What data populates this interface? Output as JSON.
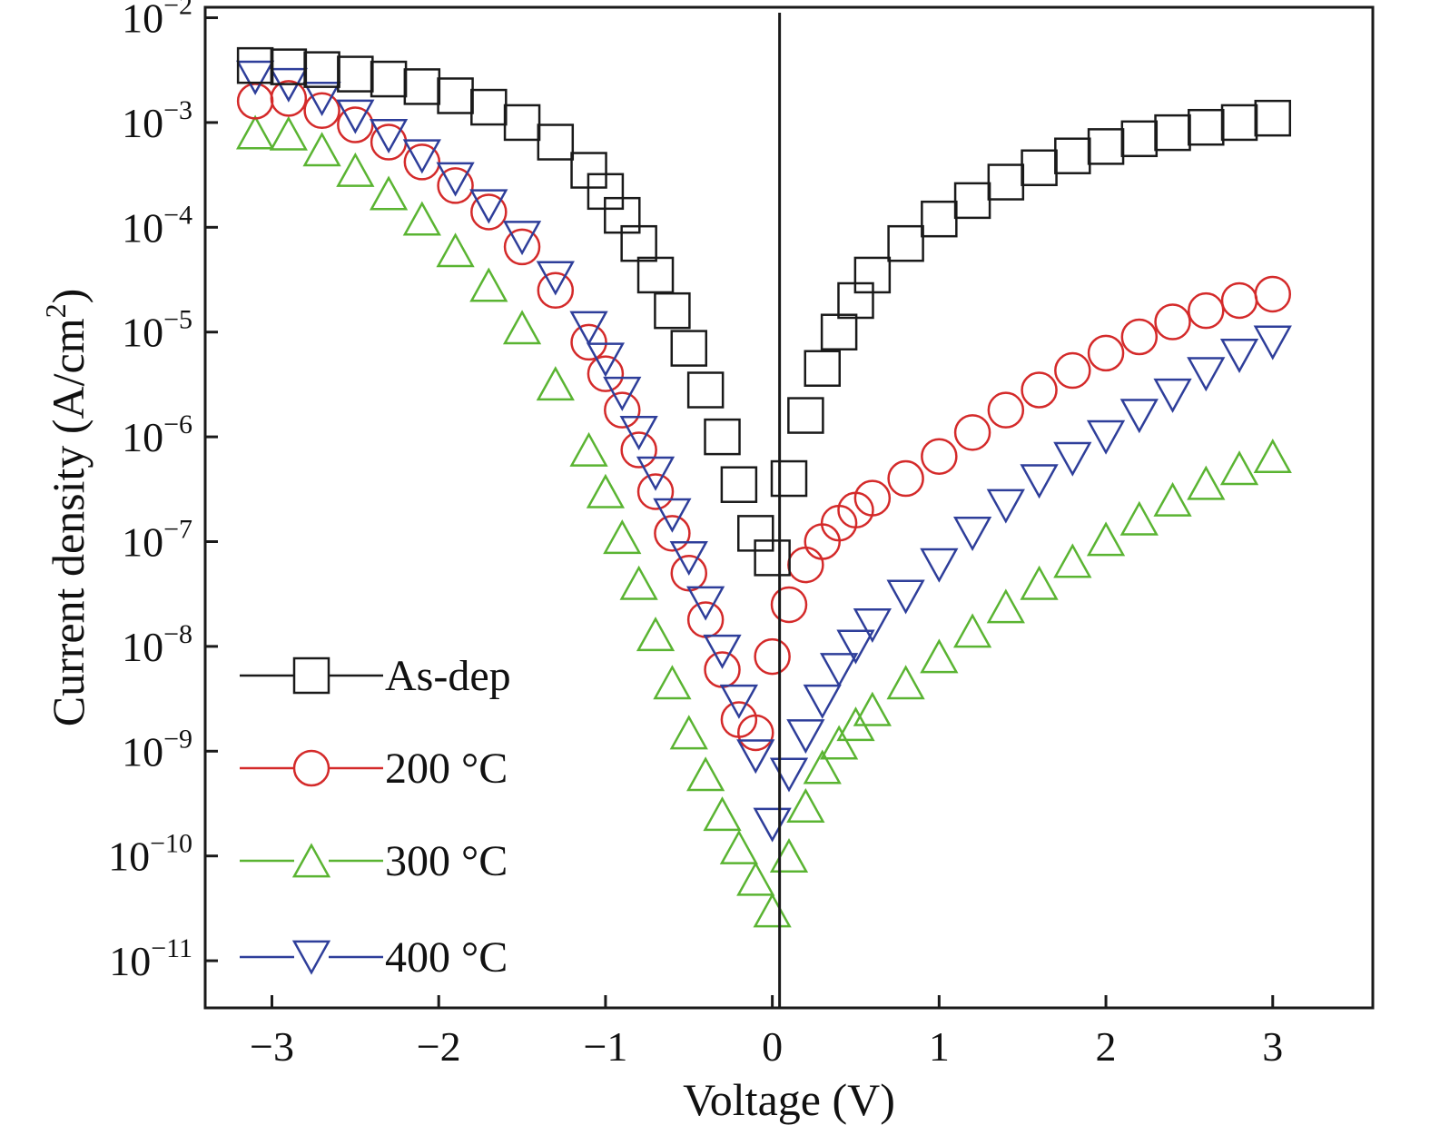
{
  "chart_data": {
    "type": "scatter",
    "xlabel": "Voltage (V)",
    "ylabel": "Current density (A/cm²)",
    "ylabel_base": "Current density (A/cm",
    "ylabel_sup": "2",
    "ylabel_tail": ")",
    "xlim": [
      -3.4,
      3.6
    ],
    "ylim_exp": [
      -11.45,
      -1.9
    ],
    "yscale": "log",
    "grid": false,
    "legend_position": "lower-left",
    "x_ticks": [
      {
        "value": -3,
        "label": "−3"
      },
      {
        "value": -2,
        "label": "−2"
      },
      {
        "value": -1,
        "label": "−1"
      },
      {
        "value": 0,
        "label": "0"
      },
      {
        "value": 1,
        "label": "1"
      },
      {
        "value": 2,
        "label": "2"
      },
      {
        "value": 3,
        "label": "3"
      }
    ],
    "y_ticks": [
      {
        "value": 0.01,
        "base": "10",
        "exp": "−2"
      },
      {
        "value": 0.001,
        "base": "10",
        "exp": "−3"
      },
      {
        "value": 0.0001,
        "base": "10",
        "exp": "−4"
      },
      {
        "value": 1e-05,
        "base": "10",
        "exp": "−5"
      },
      {
        "value": 1e-06,
        "base": "10",
        "exp": "−6"
      },
      {
        "value": 1e-07,
        "base": "10",
        "exp": "−7"
      },
      {
        "value": 1e-08,
        "base": "10",
        "exp": "−8"
      },
      {
        "value": 1e-09,
        "base": "10",
        "exp": "−9"
      },
      {
        "value": 1e-10,
        "base": "10",
        "exp": "−10"
      },
      {
        "value": 1e-11,
        "base": "10",
        "exp": "−11"
      }
    ],
    "vertical_line_x": 0,
    "series": [
      {
        "name": "As-dep",
        "color": "#1a1a1a",
        "marker": "square",
        "x": [
          -3.1,
          -2.9,
          -2.7,
          -2.5,
          -2.3,
          -2.1,
          -1.9,
          -1.7,
          -1.5,
          -1.3,
          -1.1,
          -1.0,
          -0.9,
          -0.8,
          -0.7,
          -0.6,
          -0.5,
          -0.4,
          -0.3,
          -0.2,
          -0.1,
          0.0,
          0.1,
          0.2,
          0.3,
          0.4,
          0.5,
          0.6,
          0.8,
          1.0,
          1.2,
          1.4,
          1.6,
          1.8,
          2.0,
          2.2,
          2.4,
          2.6,
          2.8,
          3.0
        ],
        "y": [
          0.0035,
          0.0034,
          0.0032,
          0.0029,
          0.0026,
          0.0022,
          0.0018,
          0.0014,
          0.001,
          0.00065,
          0.00035,
          0.00022,
          0.00013,
          7e-05,
          3.5e-05,
          1.6e-05,
          7e-06,
          2.8e-06,
          1e-06,
          3.5e-07,
          1.2e-07,
          7e-08,
          4e-07,
          1.6e-06,
          4.5e-06,
          1e-05,
          2e-05,
          3.5e-05,
          7e-05,
          0.00012,
          0.00018,
          0.00027,
          0.00037,
          0.00048,
          0.00059,
          0.0007,
          0.0008,
          0.0009,
          0.001,
          0.0011
        ]
      },
      {
        "name": "200 °C",
        "color": "#d42a2a",
        "marker": "circle",
        "x": [
          -3.1,
          -2.9,
          -2.7,
          -2.5,
          -2.3,
          -2.1,
          -1.9,
          -1.7,
          -1.5,
          -1.3,
          -1.1,
          -1.0,
          -0.9,
          -0.8,
          -0.7,
          -0.6,
          -0.5,
          -0.4,
          -0.3,
          -0.2,
          -0.1,
          0.0,
          0.1,
          0.2,
          0.3,
          0.4,
          0.5,
          0.6,
          0.8,
          1.0,
          1.2,
          1.4,
          1.6,
          1.8,
          2.0,
          2.2,
          2.4,
          2.6,
          2.8,
          3.0
        ],
        "y": [
          0.0016,
          0.0017,
          0.0013,
          0.00095,
          0.00065,
          0.00042,
          0.00025,
          0.00014,
          6.5e-05,
          2.5e-05,
          8e-06,
          4e-06,
          1.8e-06,
          7.5e-07,
          3e-07,
          1.2e-07,
          5e-08,
          1.8e-08,
          6e-09,
          2e-09,
          1.5e-09,
          8e-09,
          2.5e-08,
          6e-08,
          1e-07,
          1.5e-07,
          2e-07,
          2.6e-07,
          4e-07,
          6.5e-07,
          1.1e-06,
          1.8e-06,
          2.8e-06,
          4.3e-06,
          6.3e-06,
          9e-06,
          1.25e-05,
          1.6e-05,
          2e-05,
          2.3e-05
        ]
      },
      {
        "name": "300 °C",
        "color": "#5ab432",
        "marker": "triangle-up",
        "x": [
          -3.1,
          -2.9,
          -2.7,
          -2.5,
          -2.3,
          -2.1,
          -1.9,
          -1.7,
          -1.5,
          -1.3,
          -1.1,
          -1.0,
          -0.9,
          -0.8,
          -0.7,
          -0.6,
          -0.5,
          -0.4,
          -0.3,
          -0.2,
          -0.1,
          0.0,
          0.1,
          0.2,
          0.3,
          0.4,
          0.5,
          0.6,
          0.8,
          1.0,
          1.2,
          1.4,
          1.6,
          1.8,
          2.0,
          2.2,
          2.4,
          2.6,
          2.8,
          3.0
        ],
        "y": [
          0.0008,
          0.00078,
          0.00055,
          0.00035,
          0.00021,
          0.00012,
          6e-05,
          2.8e-05,
          1.1e-05,
          3.2e-06,
          7.5e-07,
          3e-07,
          1.1e-07,
          4e-08,
          1.3e-08,
          4.5e-09,
          1.5e-09,
          6e-10,
          2.5e-10,
          1.2e-10,
          6e-11,
          3e-11,
          1e-10,
          3e-10,
          7e-10,
          1.2e-09,
          1.8e-09,
          2.5e-09,
          4.5e-09,
          8e-09,
          1.4e-08,
          2.4e-08,
          4e-08,
          6.5e-08,
          1.05e-07,
          1.65e-07,
          2.5e-07,
          3.6e-07,
          5e-07,
          6.5e-07
        ]
      },
      {
        "name": "400 °C",
        "color": "#2e3e9a",
        "marker": "triangle-down",
        "x": [
          -3.1,
          -2.9,
          -2.7,
          -2.5,
          -2.3,
          -2.1,
          -1.9,
          -1.7,
          -1.5,
          -1.3,
          -1.1,
          -1.0,
          -0.9,
          -0.8,
          -0.7,
          -0.6,
          -0.5,
          -0.4,
          -0.3,
          -0.2,
          -0.1,
          0.0,
          0.1,
          0.2,
          0.3,
          0.4,
          0.5,
          0.6,
          0.8,
          1.0,
          1.2,
          1.4,
          1.6,
          1.8,
          2.0,
          2.2,
          2.4,
          2.6,
          2.8,
          3.0
        ],
        "y": [
          0.0027,
          0.0023,
          0.0017,
          0.00115,
          0.00075,
          0.00048,
          0.00029,
          0.00016,
          8e-05,
          3.3e-05,
          1.1e-05,
          5.5e-06,
          2.6e-06,
          1.1e-06,
          4.5e-07,
          1.8e-07,
          7e-08,
          2.6e-08,
          9e-09,
          3e-09,
          9e-10,
          2e-10,
          6e-10,
          1.4e-09,
          3e-09,
          6e-09,
          1e-08,
          1.6e-08,
          3e-08,
          6e-08,
          1.2e-07,
          2.2e-07,
          3.8e-07,
          6.2e-07,
          1e-06,
          1.6e-06,
          2.5e-06,
          4e-06,
          6e-06,
          8e-06
        ]
      }
    ]
  }
}
